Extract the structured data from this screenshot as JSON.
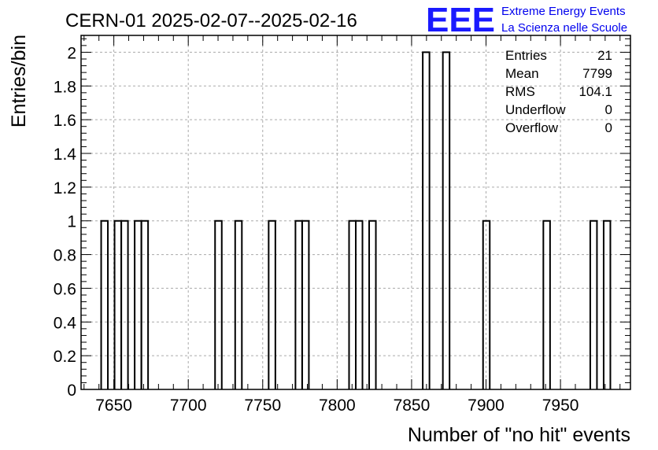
{
  "title": "CERN-01 2025-02-07--2025-02-16",
  "logo": {
    "mark": "EEE",
    "line1": "Extreme Energy Events",
    "line2": "La Scienza nelle Scuole",
    "color": "#1a1aff"
  },
  "stats": [
    {
      "label": "Entries",
      "value": "21"
    },
    {
      "label": "Mean",
      "value": "7799"
    },
    {
      "label": "RMS",
      "value": "104.1"
    },
    {
      "label": "Underflow",
      "value": "0"
    },
    {
      "label": "Overflow",
      "value": "0"
    }
  ],
  "chart_data": {
    "type": "bar",
    "title": "CERN-01 2025-02-07--2025-02-16",
    "xlabel": "Number of \"no hit\" events",
    "ylabel": "Entries/bin",
    "xlim": [
      7628,
      7997
    ],
    "ylim": [
      0,
      2.1
    ],
    "bin_width": 4.5,
    "grid": true,
    "x_ticks": [
      7650,
      7700,
      7750,
      7800,
      7850,
      7900,
      7950
    ],
    "y_ticks": [
      0,
      0.2,
      0.4,
      0.6,
      0.8,
      1,
      1.2,
      1.4,
      1.6,
      1.8,
      2
    ],
    "y_tick_labels": [
      "0",
      "0.2",
      "0.4",
      "0.6",
      "0.8",
      "1",
      "1.2",
      "1.4",
      "1.6",
      "1.8",
      "2"
    ],
    "bins": [
      {
        "x": 7641.5,
        "count": 1
      },
      {
        "x": 7650.5,
        "count": 1
      },
      {
        "x": 7655.0,
        "count": 1
      },
      {
        "x": 7664.0,
        "count": 1
      },
      {
        "x": 7668.5,
        "count": 1
      },
      {
        "x": 7718.0,
        "count": 1
      },
      {
        "x": 7731.5,
        "count": 1
      },
      {
        "x": 7754.0,
        "count": 1
      },
      {
        "x": 7772.0,
        "count": 1
      },
      {
        "x": 7776.5,
        "count": 1
      },
      {
        "x": 7808.0,
        "count": 1
      },
      {
        "x": 7812.5,
        "count": 1
      },
      {
        "x": 7821.5,
        "count": 1
      },
      {
        "x": 7857.5,
        "count": 2
      },
      {
        "x": 7871.0,
        "count": 2
      },
      {
        "x": 7898.0,
        "count": 1
      },
      {
        "x": 7938.5,
        "count": 1
      },
      {
        "x": 7970.0,
        "count": 1
      },
      {
        "x": 7979.0,
        "count": 1
      }
    ],
    "line_color": "#000000",
    "grid_color": "#aaaaaa"
  }
}
